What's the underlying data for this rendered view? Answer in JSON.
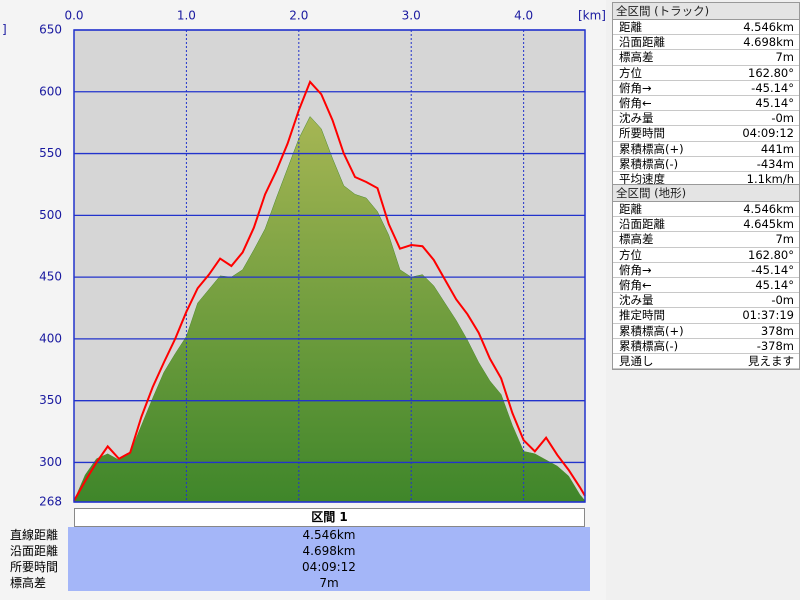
{
  "chart_data": {
    "type": "area",
    "x_unit": "[km]",
    "y_unit": "]",
    "x": [
      0,
      0.1,
      0.2,
      0.3,
      0.4,
      0.5,
      0.6,
      0.7,
      0.8,
      0.9,
      1.0,
      1.1,
      1.2,
      1.3,
      1.4,
      1.5,
      1.6,
      1.7,
      1.8,
      1.9,
      2.0,
      2.1,
      2.2,
      2.3,
      2.4,
      2.5,
      2.6,
      2.7,
      2.8,
      2.9,
      3.0,
      3.1,
      3.2,
      3.3,
      3.4,
      3.5,
      3.6,
      3.7,
      3.8,
      3.9,
      4.0,
      4.1,
      4.2,
      4.3,
      4.4,
      4.5,
      4.546
    ],
    "series": [
      {
        "name": "terrain",
        "color": "#4a8a2c",
        "values": [
          269,
          290,
          303,
          307,
          302,
          308,
          330,
          352,
          373,
          388,
          402,
          429,
          440,
          451,
          450,
          456,
          472,
          489,
          514,
          538,
          562,
          580,
          570,
          546,
          524,
          517,
          514,
          503,
          484,
          456,
          450,
          452,
          443,
          429,
          415,
          399,
          381,
          366,
          355,
          330,
          309,
          307,
          302,
          297,
          289,
          274,
          269
        ]
      },
      {
        "name": "track",
        "color": "#ff0000",
        "values": [
          269,
          285,
          300,
          313,
          303,
          308,
          337,
          361,
          381,
          400,
          422,
          441,
          452,
          465,
          459,
          470,
          490,
          517,
          536,
          558,
          585,
          608,
          598,
          577,
          550,
          531,
          527,
          522,
          493,
          473,
          476,
          475,
          464,
          448,
          432,
          420,
          405,
          384,
          368,
          340,
          318,
          309,
          320,
          306,
          294,
          280,
          273
        ]
      }
    ],
    "xlim": [
      0,
      4.546
    ],
    "xticks": [
      {
        "value": 0,
        "label": "0.0"
      },
      {
        "value": 1,
        "label": "1.0"
      },
      {
        "value": 2,
        "label": "2.0"
      },
      {
        "value": 3,
        "label": "3.0"
      },
      {
        "value": 4,
        "label": "4.0"
      }
    ],
    "ylim": [
      268,
      650
    ],
    "yticks": [
      268,
      300,
      350,
      400,
      450,
      500,
      550,
      600,
      650
    ],
    "grid": true
  },
  "section": {
    "title": "区間 1",
    "rows": [
      {
        "label": "直線距離",
        "value": "4.546km"
      },
      {
        "label": "沿面距離",
        "value": "4.698km"
      },
      {
        "label": "所要時間",
        "value": "04:09:12"
      },
      {
        "label": "標高差",
        "value": "7m"
      }
    ]
  },
  "track_panel": {
    "title": "全区間 (トラック)",
    "rows": [
      {
        "label": "距離",
        "value": "4.546km"
      },
      {
        "label": "沿面距離",
        "value": "4.698km"
      },
      {
        "label": "標高差",
        "value": "7m"
      },
      {
        "label": "方位",
        "value": "162.80°"
      },
      {
        "label": "俯角→",
        "value": "-45.14°"
      },
      {
        "label": "俯角←",
        "value": "45.14°"
      },
      {
        "label": "沈み量",
        "value": "-0m"
      },
      {
        "label": "所要時間",
        "value": "04:09:12"
      },
      {
        "label": "累積標高(+)",
        "value": "441m"
      },
      {
        "label": "累積標高(-)",
        "value": "-434m"
      },
      {
        "label": "平均速度",
        "value": "1.1km/h"
      }
    ]
  },
  "terrain_panel": {
    "title": "全区間 (地形)",
    "rows": [
      {
        "label": "距離",
        "value": "4.546km"
      },
      {
        "label": "沿面距離",
        "value": "4.645km"
      },
      {
        "label": "標高差",
        "value": "7m"
      },
      {
        "label": "方位",
        "value": "162.80°"
      },
      {
        "label": "俯角→",
        "value": "-45.14°"
      },
      {
        "label": "俯角←",
        "value": "45.14°"
      },
      {
        "label": "沈み量",
        "value": "-0m"
      },
      {
        "label": "推定時間",
        "value": "01:37:19"
      },
      {
        "label": "累積標高(+)",
        "value": "378m"
      },
      {
        "label": "累積標高(-)",
        "value": "-378m"
      },
      {
        "label": "見通し",
        "value": "見えます"
      }
    ]
  }
}
